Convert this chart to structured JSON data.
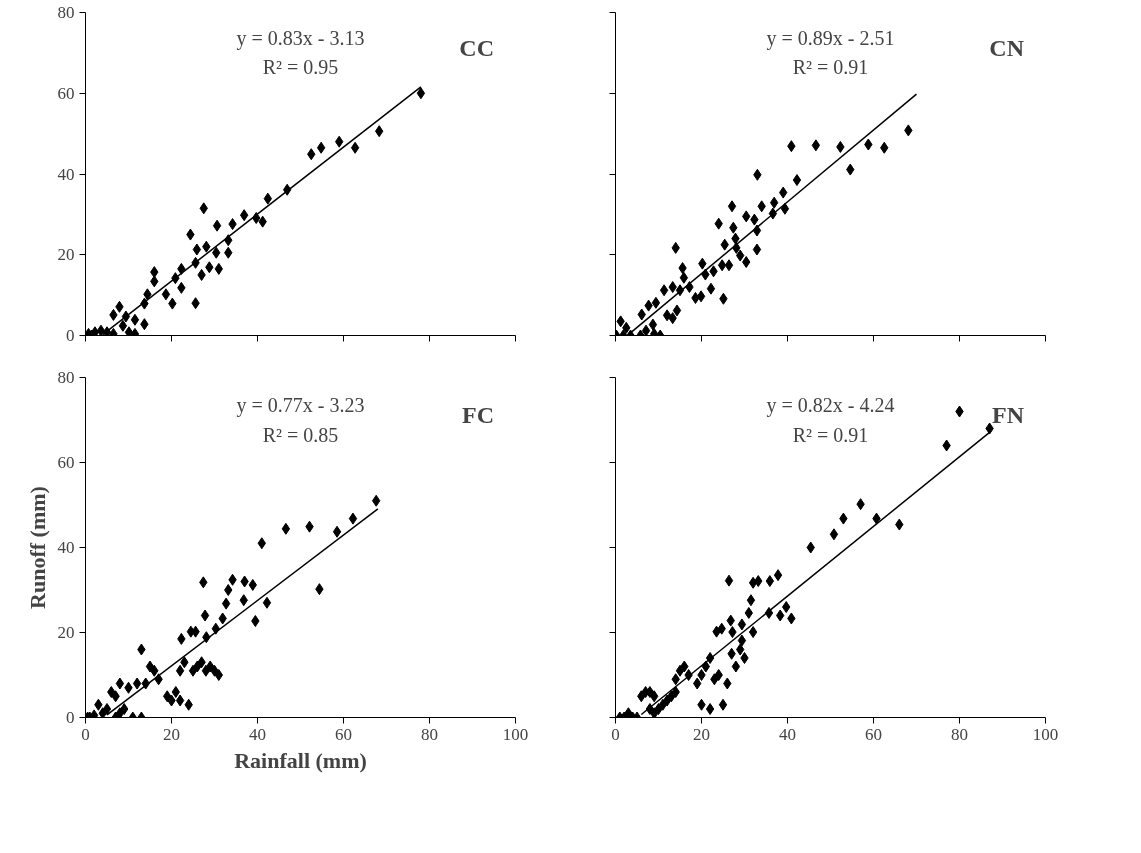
{
  "chart_data": [
    {
      "type": "scatter",
      "title": "CC",
      "annotations": [
        "y = 0.83x - 3.13",
        "R² = 0.95"
      ],
      "xlim": [
        0,
        100
      ],
      "ylim": [
        0,
        80
      ],
      "xticks": [
        0,
        20,
        40,
        60,
        80,
        100
      ],
      "yticks": [
        0,
        20,
        40,
        60,
        80
      ],
      "tick_labels": "y",
      "grid": false,
      "marker": "diamond",
      "series": [
        {
          "color": "#000000",
          "x": [
            78,
            68.3,
            62.7,
            59,
            54.8,
            52.5,
            46.9,
            42.4,
            41.2,
            39.7,
            36.9,
            27.5,
            24.4,
            30.6,
            34.2,
            33.2,
            33.2,
            28.1,
            25.9,
            30.4,
            31,
            28.8,
            27,
            25.6,
            25.6,
            22.3,
            20.9,
            22.3,
            20.2,
            18.7,
            16,
            16,
            14.4,
            13.7,
            13.7,
            11.5,
            7.9,
            6.5,
            9.4,
            8.7,
            10.1,
            11.5,
            6.5,
            5,
            3.6,
            2.2,
            0.7,
            1.4
          ],
          "values": [
            60,
            50.6,
            46.5,
            48,
            46.5,
            44.9,
            36.1,
            33.9,
            28.2,
            29.1,
            29.8,
            31.5,
            25,
            27.2,
            27.6,
            23.6,
            20.5,
            22,
            21.3,
            20.5,
            16.5,
            16.9,
            15,
            18,
            8,
            16.5,
            14.2,
            11.8,
            7.9,
            10.2,
            15.7,
            13.4,
            10.2,
            7.9,
            2.8,
            3.9,
            7.1,
            5.1,
            4.7,
            2.4,
            0.8,
            0.4,
            0.4,
            0.8,
            1.2,
            0.8,
            0.4,
            0
          ]
        },
        {
          "type": "line",
          "marker": "none",
          "color": "#000000",
          "x": [
            4,
            78
          ],
          "values": [
            0.2,
            61.6
          ]
        }
      ]
    },
    {
      "type": "scatter",
      "title": "CN",
      "annotations": [
        "y = 0.89x - 2.51",
        "R² = 0.91"
      ],
      "xlim": [
        0,
        100
      ],
      "ylim": [
        0,
        80
      ],
      "xticks": [
        0,
        20,
        40,
        60,
        80,
        100
      ],
      "yticks": [
        0,
        20,
        40,
        60,
        80
      ],
      "tick_labels": false,
      "grid": false,
      "marker": "diamond",
      "series": [
        {
          "color": "#000000",
          "x": [
            68.1,
            62.5,
            58.8,
            54.6,
            52.3,
            46.6,
            40.9,
            42.2,
            33,
            39,
            39.4,
            36.9,
            36.6,
            34,
            27.1,
            30.4,
            32.3,
            32.9,
            24,
            27.4,
            27.9,
            25.4,
            28.1,
            32.9,
            30.4,
            29,
            26.4,
            24.8,
            22.8,
            20.2,
            20.9,
            22.2,
            25.1,
            19.9,
            18.6,
            17.2,
            15.9,
            15.6,
            14,
            15,
            13.3,
            11.3,
            14.3,
            13.3,
            12,
            9.4,
            7.7,
            6.1,
            8.7,
            7.1,
            10.4,
            9,
            5.8,
            2.5,
            1.2,
            1.8,
            0.2,
            3.5
          ],
          "values": [
            50.8,
            46.5,
            47.3,
            41.1,
            46.7,
            47.1,
            46.9,
            38.5,
            39.8,
            35.4,
            31.4,
            32.9,
            30.2,
            32,
            32,
            29.5,
            28.7,
            26,
            27.7,
            26.7,
            24,
            22.5,
            21.7,
            21.3,
            18.2,
            19.8,
            17.4,
            17.4,
            15.9,
            17.8,
            15.1,
            11.6,
            9.1,
            9.7,
            9.3,
            12,
            14.3,
            16.7,
            21.7,
            11.2,
            12,
            11.2,
            6.2,
            4.3,
            5,
            8.1,
            7.4,
            5.2,
            2.7,
            1.2,
            0,
            0.4,
            0,
            1.9,
            3.5,
            0,
            0,
            0
          ]
        },
        {
          "type": "line",
          "marker": "none",
          "color": "#000000",
          "x": [
            3,
            70
          ],
          "values": [
            0.2,
            59.8
          ]
        }
      ]
    },
    {
      "type": "scatter",
      "title": "FC",
      "annotations": [
        "y = 0.77x - 3.23",
        "R² = 0.85"
      ],
      "xlabel": "Rainfall (mm)",
      "ylabel": "Runoff (mm)",
      "xlim": [
        0,
        100
      ],
      "ylim": [
        0,
        80
      ],
      "xticks": [
        0,
        20,
        40,
        60,
        80,
        100
      ],
      "yticks": [
        0,
        20,
        40,
        60,
        80
      ],
      "grid": false,
      "marker": "diamond",
      "series": [
        {
          "color": "#000000",
          "x": [
            67.6,
            62.2,
            58.5,
            52.1,
            46.6,
            41,
            54.4,
            42.2,
            38.9,
            37,
            34.2,
            27.4,
            33.2,
            36.8,
            32.7,
            27.8,
            31.9,
            39.5,
            30.3,
            24.5,
            25.6,
            28.1,
            22.3,
            13,
            14,
            15,
            16,
            17,
            20,
            21,
            22,
            23,
            24,
            25,
            26,
            27,
            28,
            29,
            30,
            31,
            12,
            10,
            8,
            7,
            6,
            5,
            4,
            3,
            2,
            1,
            0.5,
            7,
            9,
            11,
            13,
            8,
            19,
            22
          ],
          "values": [
            51,
            46.8,
            43.7,
            44.9,
            44.4,
            41,
            30.2,
            27,
            31.2,
            32,
            32.4,
            31.8,
            30,
            27.6,
            26.8,
            24,
            23.3,
            22.7,
            20.9,
            20.2,
            20.2,
            18.9,
            18.5,
            16,
            8,
            12,
            11,
            9,
            4,
            6,
            11,
            13,
            3,
            11,
            12,
            13,
            11,
            12,
            11,
            10,
            8,
            7,
            8,
            5,
            6,
            2,
            1,
            3,
            0.5,
            0,
            0,
            0,
            2,
            0,
            0,
            1,
            5,
            4
          ]
        },
        {
          "type": "line",
          "marker": "none",
          "color": "#000000",
          "x": [
            5,
            68
          ],
          "values": [
            0.6,
            49.1
          ]
        }
      ]
    },
    {
      "type": "scatter",
      "title": "FN",
      "annotations": [
        "y = 0.82x - 4.24",
        "R² = 0.91"
      ],
      "xlim": [
        0,
        100
      ],
      "ylim": [
        0,
        80
      ],
      "xticks": [
        0,
        20,
        40,
        60,
        80,
        100
      ],
      "yticks": [
        0,
        20,
        40,
        60,
        80
      ],
      "tick_labels": "x",
      "grid": false,
      "marker": "diamond",
      "series": [
        {
          "color": "#000000",
          "x": [
            80,
            87,
            77,
            66,
            60.7,
            57,
            53,
            50.8,
            45.4,
            37.8,
            35.9,
            33.2,
            32,
            26.4,
            31.5,
            31,
            35.7,
            39.7,
            38.3,
            40.9,
            26.8,
            29.4,
            32,
            27.2,
            23.5,
            24.7,
            29.4,
            22,
            21,
            20,
            19,
            17,
            16,
            15,
            14,
            14,
            13,
            12,
            11,
            10,
            9,
            8,
            7,
            6,
            9,
            8,
            5,
            4,
            3,
            2,
            1,
            20,
            22,
            25,
            26,
            24,
            23,
            28,
            27,
            29,
            30
          ],
          "values": [
            72,
            68,
            64,
            45.4,
            46.8,
            50.2,
            46.8,
            43.1,
            40,
            33.5,
            32.1,
            32.1,
            31.7,
            32.2,
            27.6,
            24.6,
            24.6,
            26,
            24,
            23.3,
            22.8,
            21.9,
            20.1,
            20.1,
            20.2,
            20.9,
            18.1,
            14,
            12,
            10,
            8,
            10,
            12,
            11,
            9,
            6,
            5,
            4,
            3,
            2,
            5,
            6,
            6,
            5,
            1,
            2,
            0,
            0,
            1,
            0,
            0,
            3,
            2,
            3,
            8,
            10,
            9,
            12,
            15,
            16,
            14
          ]
        },
        {
          "type": "line",
          "marker": "none",
          "color": "#000000",
          "x": [
            6,
            87
          ],
          "values": [
            0.7,
            67.1
          ]
        }
      ]
    }
  ]
}
